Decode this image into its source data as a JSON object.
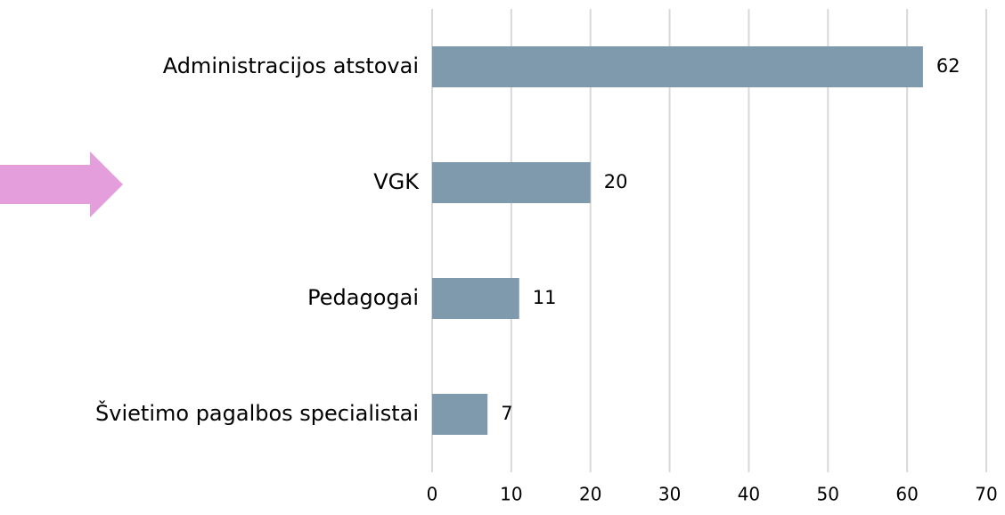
{
  "chart_data": {
    "type": "bar",
    "categories": [
      "Administracijos atstovai",
      "VGK",
      "Pedagogai",
      "Švietimo pagalbos specialistai"
    ],
    "values": [
      62,
      20,
      11,
      7
    ],
    "color": "#7f99ad",
    "xlim": [
      0,
      70
    ],
    "xticks": [
      0,
      10,
      20,
      30,
      40,
      50,
      60,
      70
    ],
    "grid": true
  }
}
